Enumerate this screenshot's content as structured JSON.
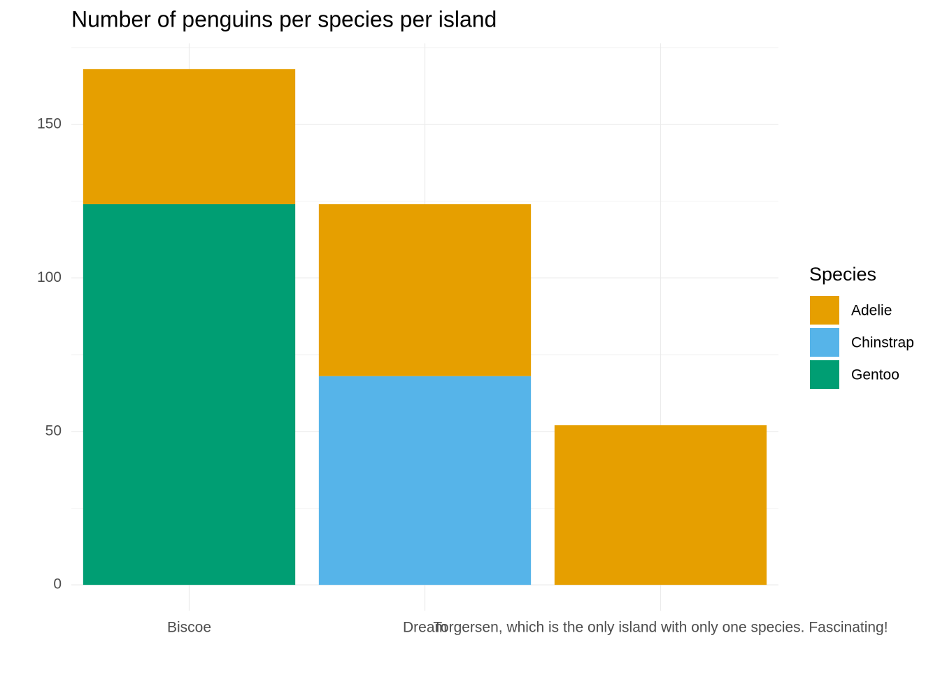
{
  "chart_data": {
    "type": "stacked_bar",
    "title": "Number of penguins per species per island",
    "categories": [
      "Biscoe",
      "Dream",
      "Torgersen, which is the only island with only one species. Fascinating!"
    ],
    "series": [
      {
        "name": "Adelie",
        "color": "#E69F00",
        "values": [
          44,
          56,
          52
        ]
      },
      {
        "name": "Chinstrap",
        "color": "#56B4E9",
        "values": [
          null,
          68,
          null
        ]
      },
      {
        "name": "Gentoo",
        "color": "#009E73",
        "values": [
          124,
          null,
          null
        ]
      }
    ],
    "legend_title": "Species",
    "legend_position": "right",
    "ylim": [
      -8.4,
      176.4
    ],
    "yticks": [
      0,
      50,
      100,
      150
    ],
    "minor_yticks": [
      25,
      75,
      125,
      175
    ],
    "grid": true
  }
}
